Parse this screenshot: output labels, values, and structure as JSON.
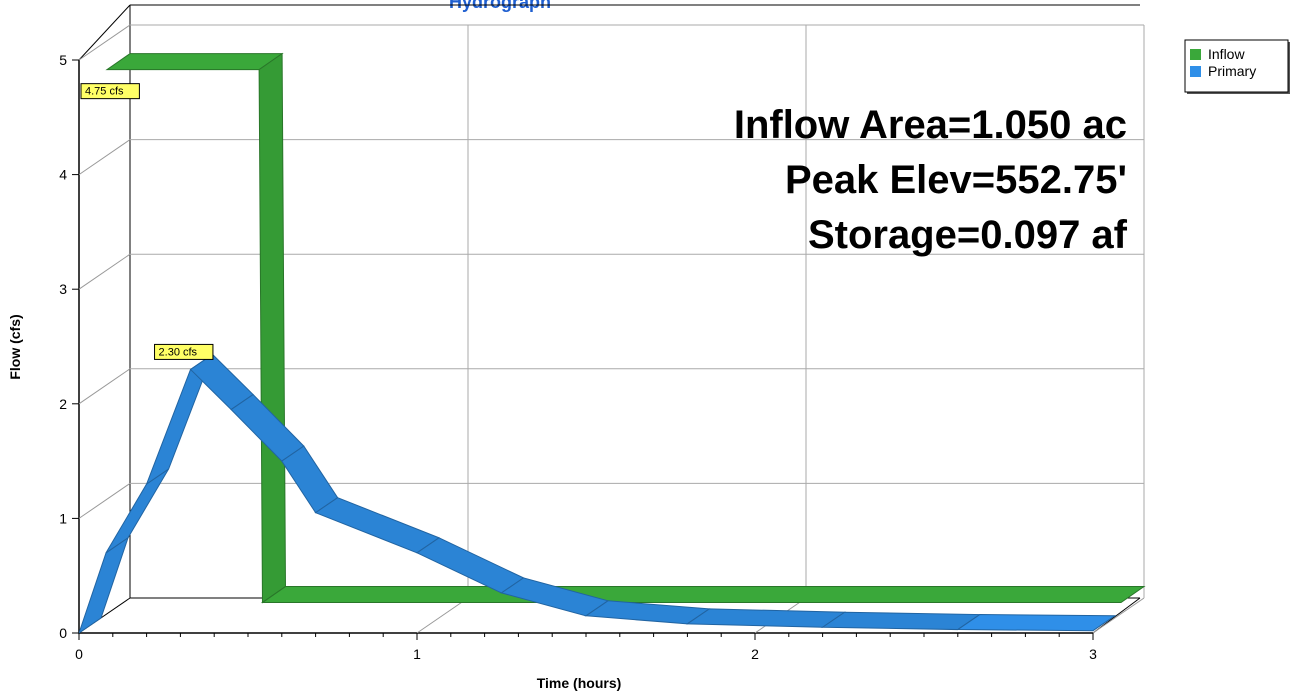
{
  "chart_data": {
    "type": "area",
    "title": "Hydrograph",
    "xlabel": "Time (hours)",
    "ylabel": "Flow (cfs)",
    "xlim": [
      0,
      3
    ],
    "ylim": [
      0,
      5
    ],
    "x_ticks": [
      "0",
      "1",
      "2",
      "3"
    ],
    "y_ticks": [
      "0",
      "1",
      "2",
      "3",
      "4",
      "5"
    ],
    "grid": true,
    "legend_position": "top-right",
    "series": [
      {
        "name": "Inflow",
        "color": "#3aa83a",
        "x": [
          0,
          0.45,
          0.46,
          3.0
        ],
        "y": [
          4.75,
          4.75,
          0.1,
          0.1
        ]
      },
      {
        "name": "Primary",
        "color": "#2f8fe8",
        "x": [
          0,
          0.08,
          0.2,
          0.33,
          0.45,
          0.6,
          0.7,
          1.0,
          1.25,
          1.5,
          1.8,
          2.2,
          2.6,
          3.0
        ],
        "y": [
          0,
          0.7,
          1.3,
          2.3,
          1.95,
          1.5,
          1.05,
          0.7,
          0.35,
          0.15,
          0.08,
          0.05,
          0.03,
          0.02
        ]
      }
    ],
    "peak_labels": [
      {
        "text": "4.75 cfs",
        "series": "Inflow",
        "x": 0,
        "y": 4.75
      },
      {
        "text": "2.30 cfs",
        "series": "Primary",
        "x": 0.33,
        "y": 2.3
      }
    ],
    "annotations": [
      "Inflow Area=1.050 ac",
      "Peak Elev=552.75'",
      "Storage=0.097 af"
    ]
  }
}
